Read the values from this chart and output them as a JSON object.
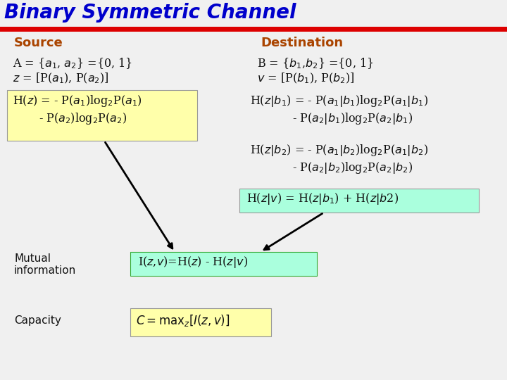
{
  "title": "Binary Symmetric Channel",
  "title_color": "#0000CC",
  "title_bg_color": "#F0F0F0",
  "title_stripe_color": "#DD0000",
  "bg_color": "#F0F0F0",
  "source_label": "Source",
  "dest_label": "Destination",
  "source_color": "#AA4400",
  "dest_color": "#AA4400",
  "text_color": "#111111",
  "yellow_bg": "#FFFFAA",
  "cyan_bg": "#AAFFDD",
  "green_cyan_bg": "#AAFFDD",
  "figsize": [
    7.2,
    5.4
  ],
  "dpi": 100
}
